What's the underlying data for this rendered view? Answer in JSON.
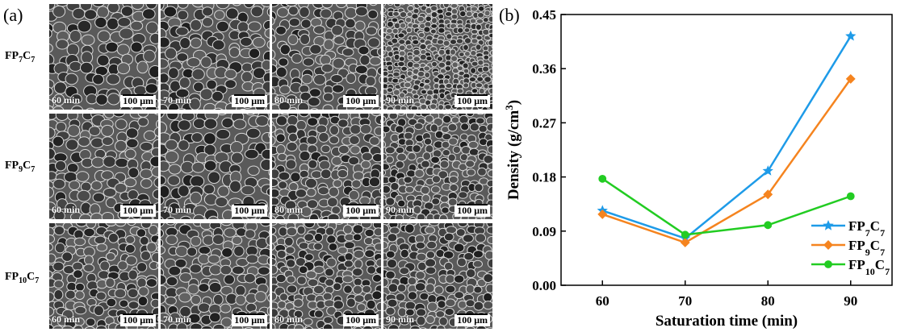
{
  "panel_a": {
    "label": "(a)",
    "rows": [
      {
        "label_main": "FP",
        "label_sub1": "7",
        "label_mid": "C",
        "label_sub2": "7",
        "tiles": [
          {
            "time": "60 min",
            "scale": "100 μm"
          },
          {
            "time": "70 min",
            "scale": "100 μm"
          },
          {
            "time": "80 min",
            "scale": "100 μm"
          },
          {
            "time": "90 min",
            "scale": "100 μm"
          }
        ]
      },
      {
        "label_main": "FP",
        "label_sub1": "9",
        "label_mid": "C",
        "label_sub2": "7",
        "tiles": [
          {
            "time": "60 min",
            "scale": "100 μm"
          },
          {
            "time": "70 min",
            "scale": "100 μm"
          },
          {
            "time": "80 min",
            "scale": "100 μm"
          },
          {
            "time": "90 min",
            "scale": "100 μm"
          }
        ]
      },
      {
        "label_main": "FP",
        "label_sub1": "10",
        "label_mid": "C",
        "label_sub2": "7",
        "tiles": [
          {
            "time": "60 min",
            "scale": "100 μm"
          },
          {
            "time": "70 min",
            "scale": "100 μm"
          },
          {
            "time": "80 min",
            "scale": "100 μm"
          },
          {
            "time": "90 min",
            "scale": "100 μm"
          }
        ]
      }
    ]
  },
  "panel_b": {
    "label": "(b)"
  },
  "chart_data": {
    "type": "line",
    "title": "",
    "xlabel": "Saturation time (min)",
    "ylabel_main": "Density (g/cm",
    "ylabel_sup": "3",
    "ylabel_end": ")",
    "x": [
      60,
      70,
      80,
      90
    ],
    "xlim": [
      55,
      95
    ],
    "ylim": [
      0,
      0.45
    ],
    "xticks": [
      "60",
      "70",
      "80",
      "90"
    ],
    "yticks": [
      "0.00",
      "0.09",
      "0.18",
      "0.27",
      "0.36",
      "0.45"
    ],
    "grid": false,
    "legend_position": "bottom-right",
    "series": [
      {
        "name_main": "FP",
        "name_sub1": "7",
        "name_mid": "C",
        "name_sub2": "7",
        "marker": "star",
        "color": "#1e9be8",
        "values": [
          0.124,
          0.078,
          0.19,
          0.414
        ]
      },
      {
        "name_main": "FP",
        "name_sub1": "9",
        "name_mid": "C",
        "name_sub2": "7",
        "marker": "diamond",
        "color": "#f5841f",
        "values": [
          0.118,
          0.071,
          0.151,
          0.343
        ]
      },
      {
        "name_main": "FP",
        "name_sub1": "10",
        "name_mid": "C",
        "name_sub2": "7",
        "marker": "circle",
        "color": "#22cc22",
        "values": [
          0.177,
          0.084,
          0.1,
          0.148
        ]
      }
    ]
  }
}
